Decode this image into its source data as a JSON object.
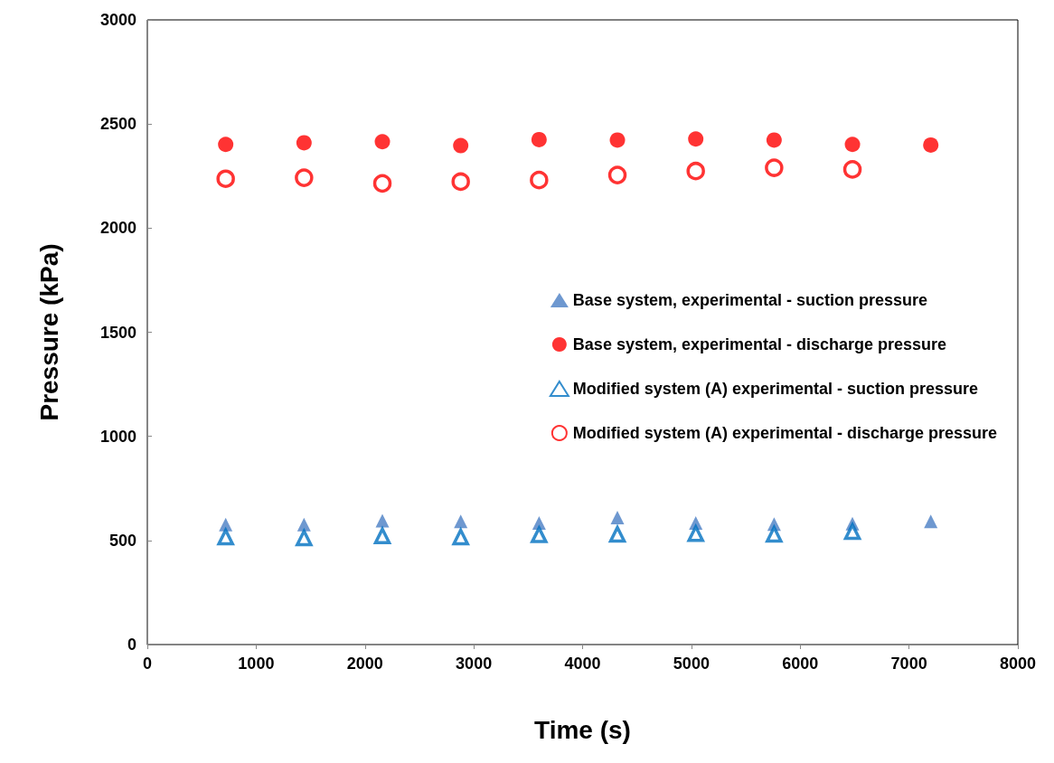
{
  "chart_data": {
    "type": "scatter",
    "xlabel": "Time (s)",
    "ylabel": "Pressure (kPa)",
    "xlim": [
      0,
      8000
    ],
    "xticks": [
      0,
      1000,
      2000,
      3000,
      4000,
      5000,
      6000,
      7000,
      8000
    ],
    "ylim": [
      0,
      3000
    ],
    "yticks": [
      0,
      500,
      1000,
      1500,
      2000,
      2500,
      3000
    ],
    "grid": false,
    "legend": "right",
    "x": [
      720,
      1440,
      2160,
      2880,
      3600,
      4320,
      5040,
      5760,
      6480,
      7200
    ],
    "series": [
      {
        "name": "Base system, experimental - suction pressure",
        "color": "#4a7ec4",
        "marker": "triangle",
        "values": [
          576,
          576,
          595,
          592,
          584,
          610,
          584,
          578,
          581,
          592
        ]
      },
      {
        "name": "Base system, experimental - discharge pressure",
        "color": "#ff0000",
        "marker": "circle",
        "values": [
          2402,
          2410,
          2415,
          2396,
          2425,
          2423,
          2428,
          2423,
          2402,
          2399
        ]
      },
      {
        "name": "Modified system (A) experimental - suction pressure",
        "color": "#0070c0",
        "marker": "triangle",
        "values": [
          517,
          512,
          522,
          517,
          527,
          530,
          533,
          530,
          543,
          null
        ]
      },
      {
        "name": "Modified system (A) experimental - discharge pressure",
        "color": "#ff0000",
        "marker": "circle",
        "values": [
          2237,
          2242,
          2215,
          2223,
          2231,
          2255,
          2274,
          2290,
          2282,
          null
        ]
      }
    ]
  }
}
